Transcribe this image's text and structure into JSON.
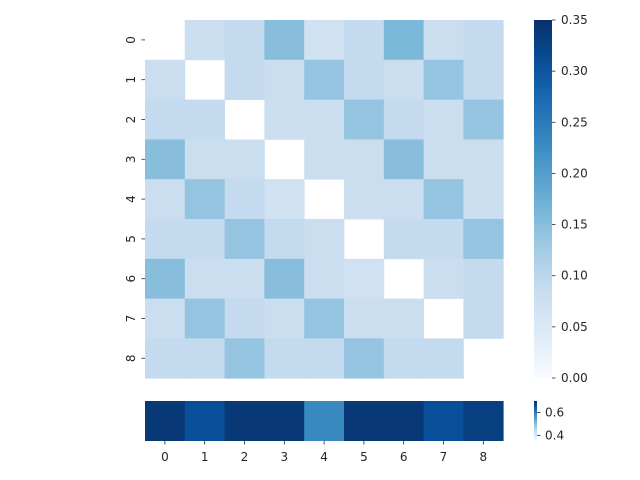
{
  "chart_data": [
    {
      "type": "heatmap",
      "rows": [
        "0",
        "1",
        "2",
        "3",
        "4",
        "5",
        "6",
        "7",
        "8"
      ],
      "columns": [
        "0",
        "1",
        "2",
        "3",
        "4",
        "5",
        "6",
        "7",
        "8"
      ],
      "values": [
        [
          null,
          0.08,
          0.09,
          0.15,
          0.07,
          0.09,
          0.16,
          0.08,
          0.09
        ],
        [
          0.08,
          null,
          0.09,
          0.08,
          0.14,
          0.09,
          0.08,
          0.14,
          0.09
        ],
        [
          0.09,
          0.09,
          null,
          0.08,
          0.08,
          0.14,
          0.09,
          0.08,
          0.14
        ],
        [
          0.15,
          0.08,
          0.08,
          null,
          0.08,
          0.08,
          0.15,
          0.08,
          0.08
        ],
        [
          0.08,
          0.14,
          0.09,
          0.07,
          null,
          0.08,
          0.08,
          0.14,
          0.08
        ],
        [
          0.09,
          0.09,
          0.14,
          0.09,
          0.08,
          null,
          0.09,
          0.09,
          0.14
        ],
        [
          0.15,
          0.08,
          0.08,
          0.15,
          0.08,
          0.07,
          null,
          0.08,
          0.09
        ],
        [
          0.08,
          0.14,
          0.09,
          0.08,
          0.14,
          0.08,
          0.08,
          null,
          0.09
        ],
        [
          0.09,
          0.09,
          0.14,
          0.09,
          0.09,
          0.14,
          0.09,
          0.09,
          null
        ]
      ],
      "colormap": "Blues",
      "colorbar": {
        "min": 0,
        "max": 0.35,
        "ticks": [
          "0.00",
          "0.05",
          "0.10",
          "0.15",
          "0.20",
          "0.25",
          "0.30",
          "0.35"
        ]
      },
      "xtick_labels_visible": false
    },
    {
      "type": "heatmap",
      "columns": [
        "0",
        "1",
        "2",
        "3",
        "4",
        "5",
        "6",
        "7",
        "8"
      ],
      "values": [
        0.69,
        0.66,
        0.69,
        0.69,
        0.58,
        0.69,
        0.69,
        0.66,
        0.68
      ],
      "colormap": "Blues",
      "colorbar": {
        "min": 0.35,
        "max": 0.7,
        "ticks": [
          "0.4",
          "0.6"
        ]
      }
    }
  ]
}
